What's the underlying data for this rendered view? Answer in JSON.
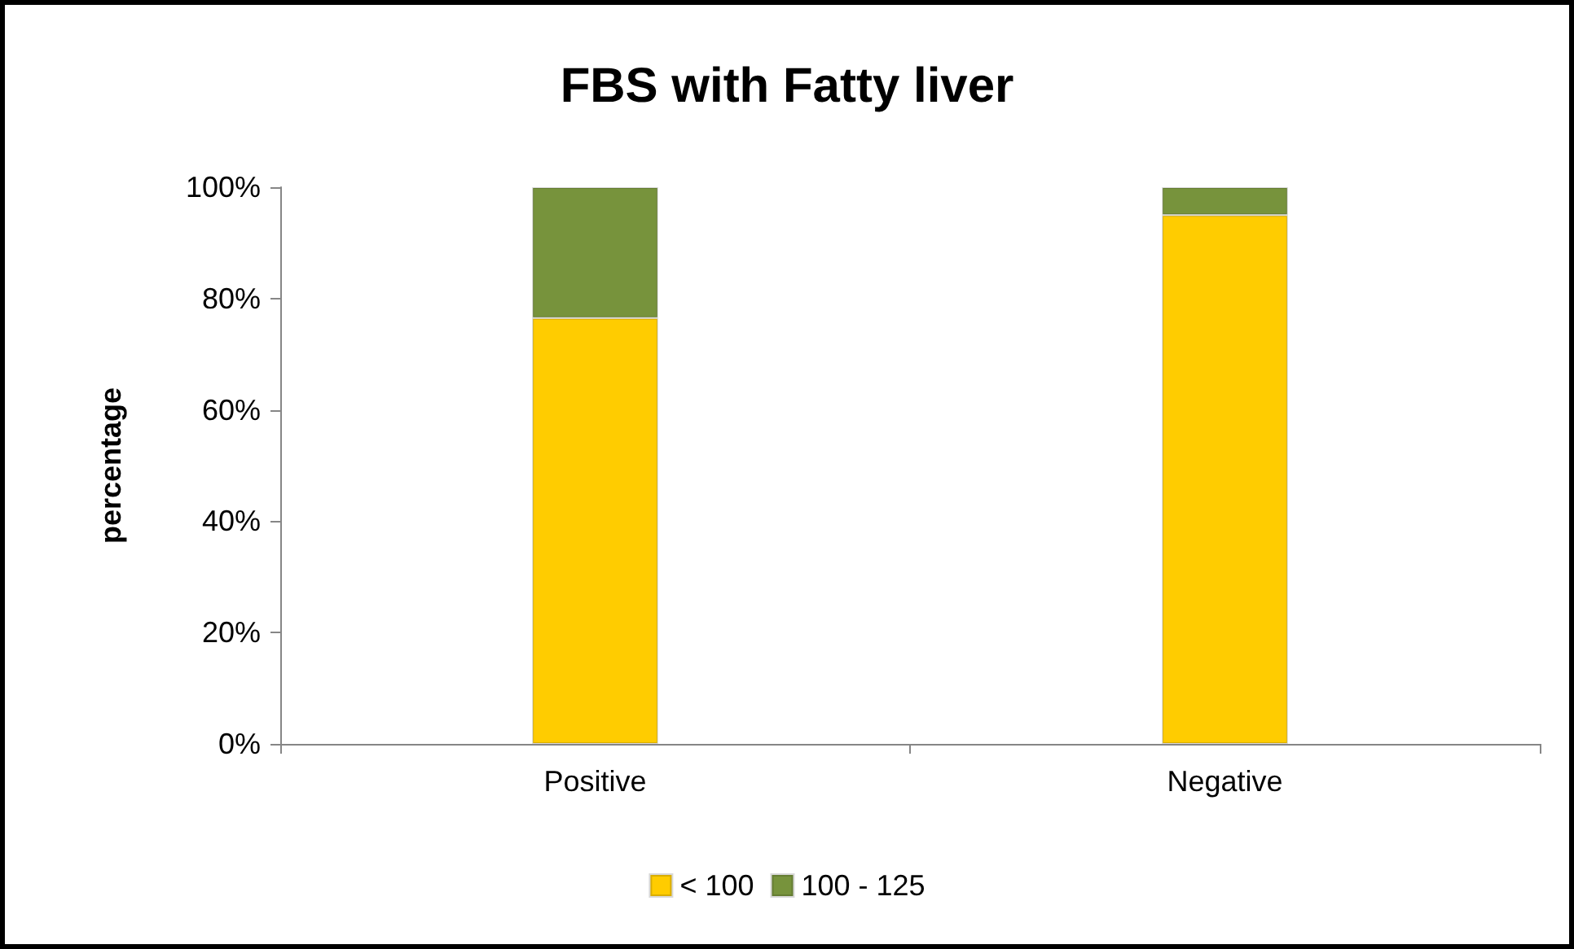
{
  "chart_data": {
    "type": "bar",
    "title": "FBS with Fatty liver",
    "ylabel": "percentage",
    "categories": [
      "Positive",
      "Negative"
    ],
    "series": [
      {
        "name": "< 100",
        "color": "#ffcc00",
        "values": [
          76.5,
          95
        ]
      },
      {
        "name": "100 - 125",
        "color": "#77933c",
        "values": [
          23.5,
          5
        ]
      }
    ],
    "stacked": true,
    "ylim": [
      0,
      100
    ],
    "yticks": [
      {
        "value": 0,
        "label": "0%"
      },
      {
        "value": 20,
        "label": "20%"
      },
      {
        "value": 40,
        "label": "40%"
      },
      {
        "value": 60,
        "label": "60%"
      },
      {
        "value": 80,
        "label": "80%"
      },
      {
        "value": 100,
        "label": "100%"
      }
    ],
    "grid": false,
    "legend": "bottom"
  }
}
